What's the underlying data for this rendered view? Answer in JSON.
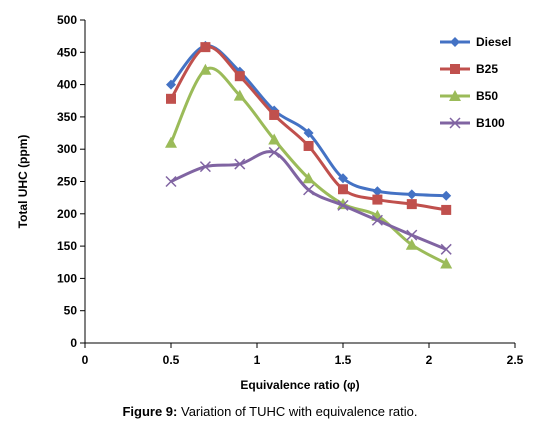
{
  "chart_data": {
    "type": "line",
    "xlabel": "Equivalence ratio (φ)",
    "ylabel": "Total UHC (ppm)",
    "xlim": [
      0,
      2.5
    ],
    "ylim": [
      0,
      500
    ],
    "xticks": [
      "0",
      "0.5",
      "1",
      "1.5",
      "2",
      "2.5"
    ],
    "yticks": [
      "0",
      "50",
      "100",
      "150",
      "200",
      "250",
      "300",
      "350",
      "400",
      "450",
      "500"
    ],
    "legend_position": "top-right",
    "grid": false,
    "series": [
      {
        "name": "Diesel",
        "color": "#4472C4",
        "marker": "diamond",
        "x": [
          0.5,
          0.7,
          0.9,
          1.1,
          1.3,
          1.5,
          1.7,
          1.9,
          2.1
        ],
        "y": [
          400,
          460,
          420,
          360,
          325,
          255,
          235,
          230,
          228
        ]
      },
      {
        "name": "B25",
        "color": "#C0504D",
        "marker": "square",
        "x": [
          0.5,
          0.7,
          0.9,
          1.1,
          1.3,
          1.5,
          1.7,
          1.9,
          2.1
        ],
        "y": [
          378,
          458,
          413,
          353,
          305,
          238,
          222,
          215,
          206
        ]
      },
      {
        "name": "B50",
        "color": "#9BBB59",
        "marker": "triangle",
        "x": [
          0.5,
          0.7,
          0.9,
          1.1,
          1.3,
          1.5,
          1.7,
          1.9,
          2.1
        ],
        "y": [
          310,
          423,
          383,
          315,
          255,
          215,
          197,
          152,
          123
        ]
      },
      {
        "name": "B100",
        "color": "#8064A2",
        "marker": "x",
        "x": [
          0.5,
          0.7,
          0.9,
          1.1,
          1.3,
          1.5,
          1.7,
          1.9,
          2.1
        ],
        "y": [
          250,
          273,
          277,
          295,
          237,
          213,
          190,
          167,
          145
        ]
      }
    ]
  },
  "caption": {
    "label": "Figure 9:",
    "text": " Variation of TUHC with equivalence ratio."
  }
}
